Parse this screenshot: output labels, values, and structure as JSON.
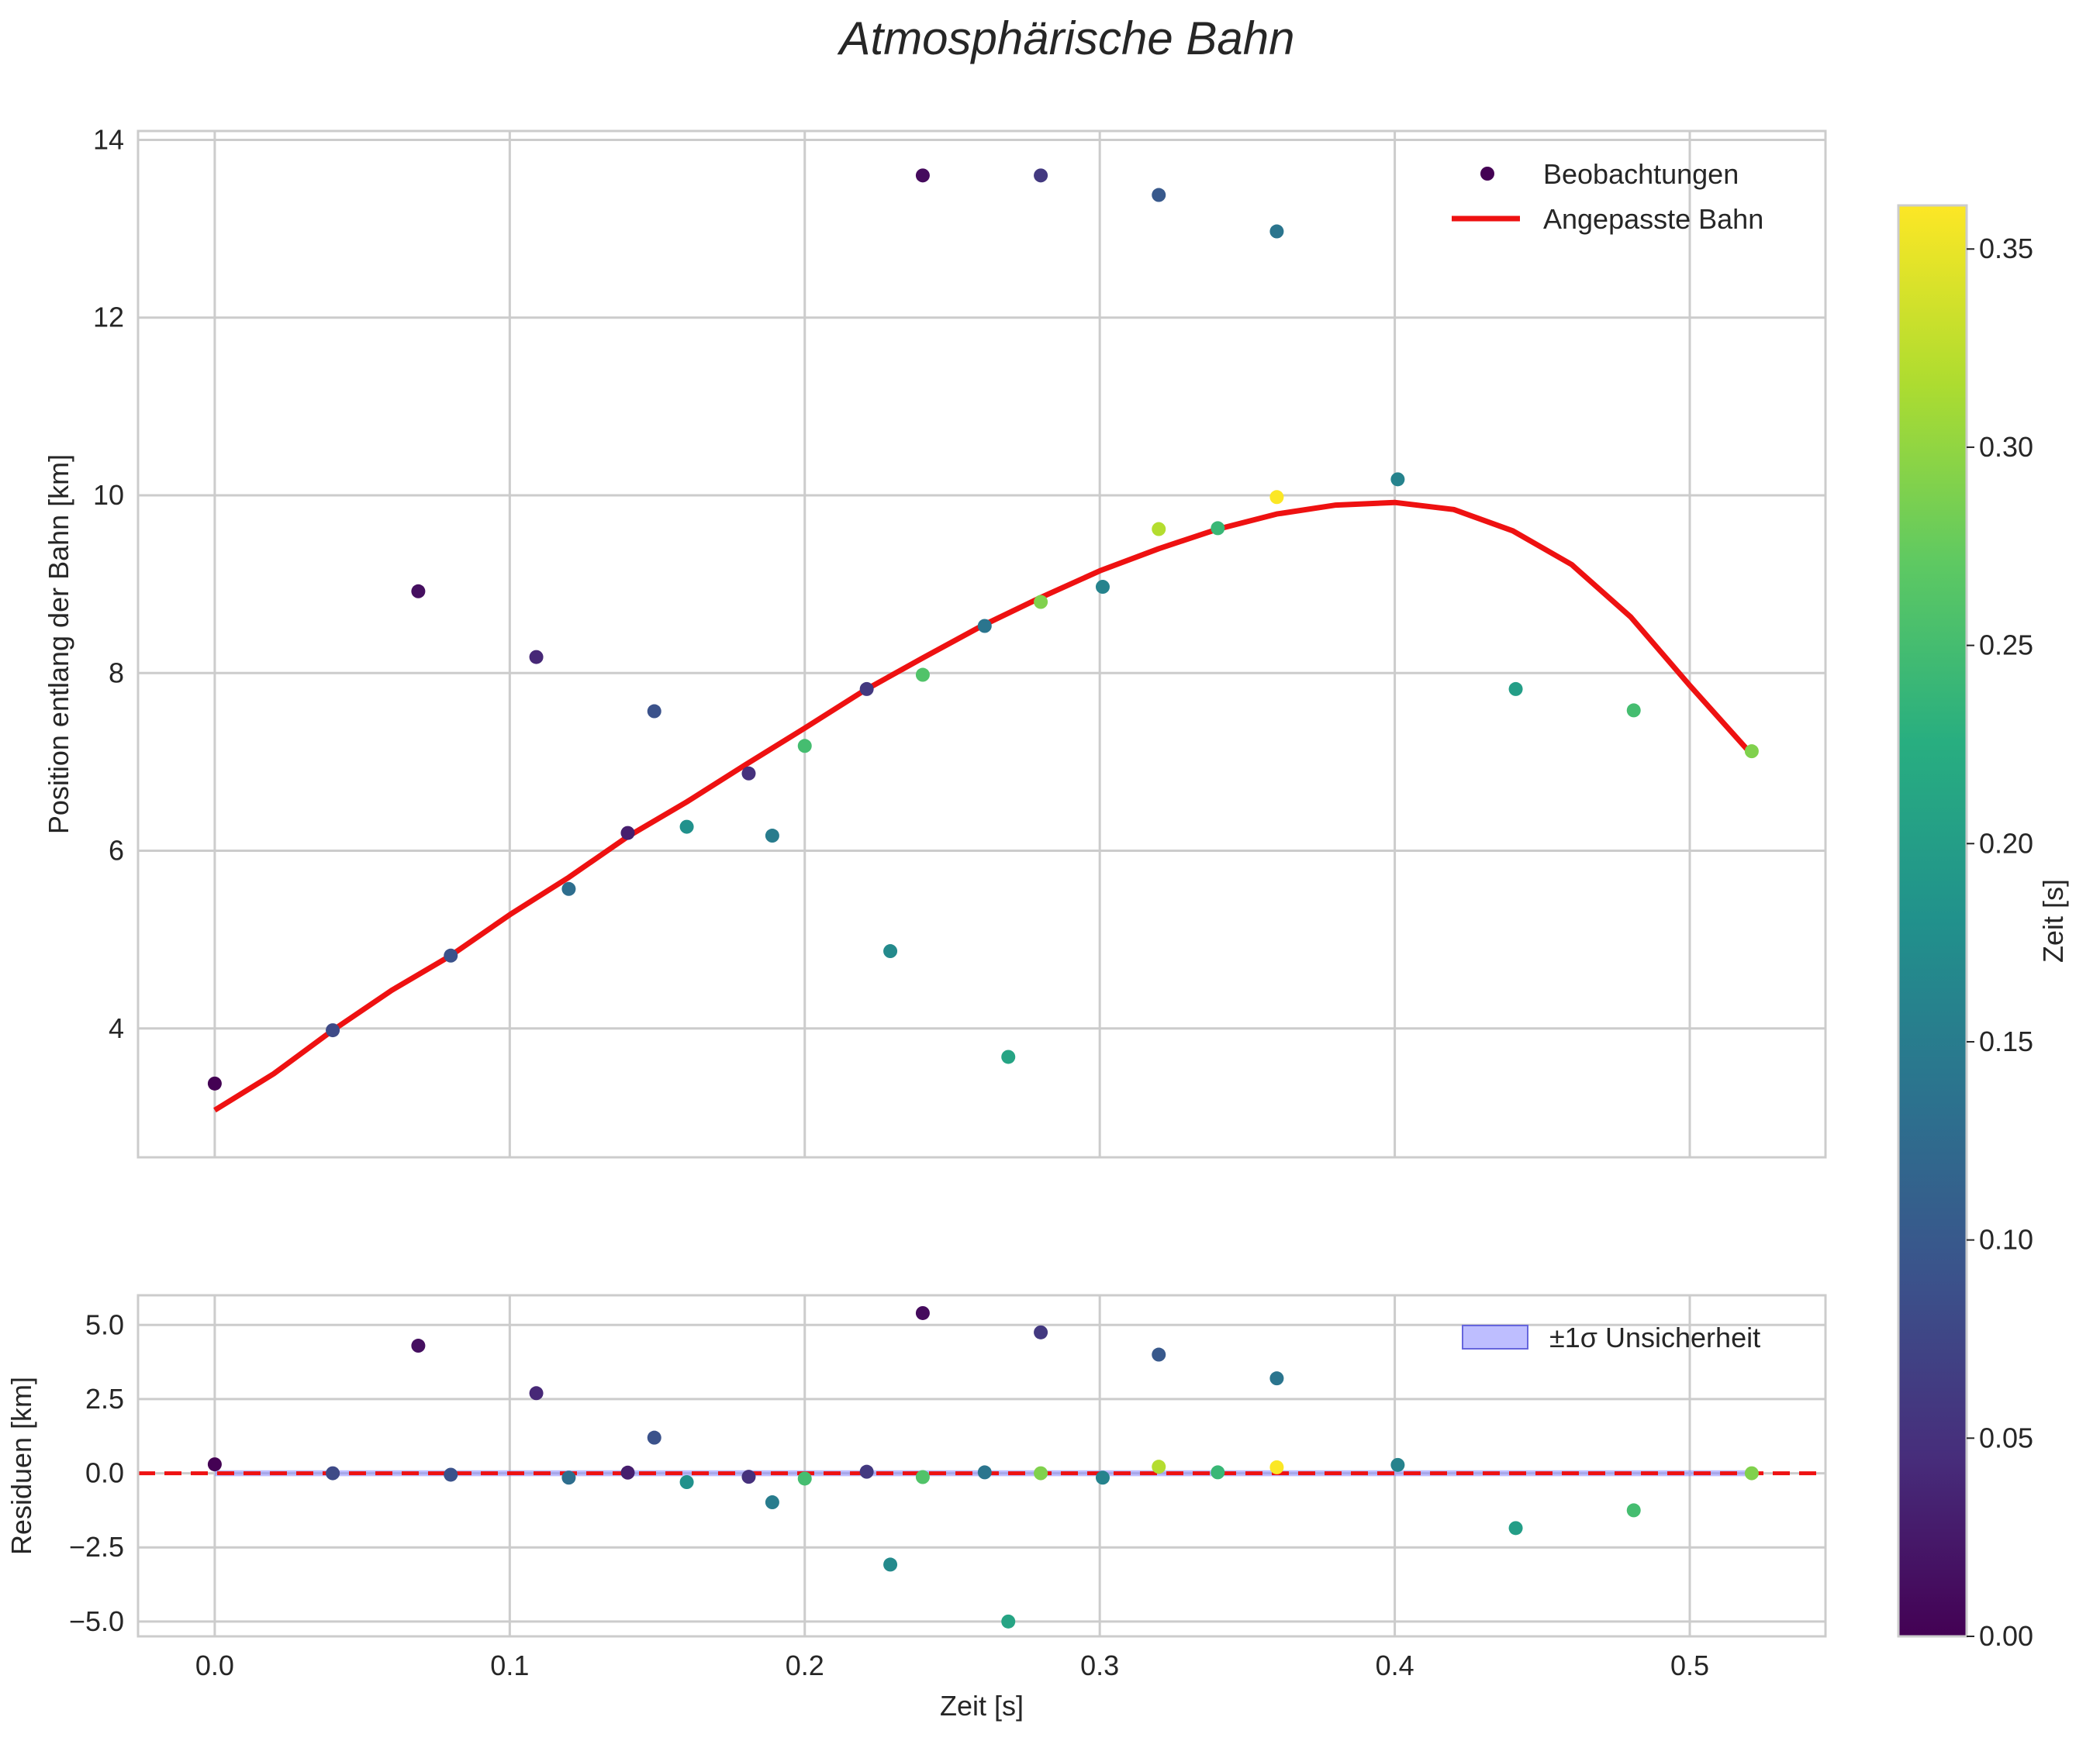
{
  "figure": {
    "title": "Atmosphärische Bahn"
  },
  "chart_data": [
    {
      "type": "scatter",
      "panel": "main",
      "xlabel": "",
      "ylabel": "Position entlang der Bahn [km]",
      "xlim": [
        -0.026,
        0.546
      ],
      "ylim": [
        2.55,
        14.1
      ],
      "xticks": [
        0.0,
        0.1,
        0.2,
        0.3,
        0.4,
        0.5
      ],
      "yticks": [
        4,
        6,
        8,
        10,
        12,
        14
      ],
      "ytick_labels": [
        "4",
        "6",
        "8",
        "10",
        "12",
        "14"
      ],
      "grid": true,
      "legend": {
        "placement": "top-right",
        "entries": [
          "Beobachtungen",
          "Angepasste Bahn"
        ]
      },
      "series": [
        {
          "name": "Beobachtungen",
          "kind": "scatter",
          "color_encoding": "Zeit [s] (viridis)",
          "points": [
            {
              "x": 0.0,
              "y": 3.38,
              "c": 0.0
            },
            {
              "x": 0.04,
              "y": 3.98,
              "c": 0.08
            },
            {
              "x": 0.069,
              "y": 8.92,
              "c": 0.014
            },
            {
              "x": 0.08,
              "y": 4.82,
              "c": 0.09
            },
            {
              "x": 0.109,
              "y": 8.18,
              "c": 0.04
            },
            {
              "x": 0.12,
              "y": 5.57,
              "c": 0.13
            },
            {
              "x": 0.14,
              "y": 6.2,
              "c": 0.03
            },
            {
              "x": 0.149,
              "y": 7.57,
              "c": 0.09
            },
            {
              "x": 0.16,
              "y": 6.27,
              "c": 0.18
            },
            {
              "x": 0.181,
              "y": 6.87,
              "c": 0.05
            },
            {
              "x": 0.189,
              "y": 6.17,
              "c": 0.15
            },
            {
              "x": 0.2,
              "y": 7.18,
              "c": 0.25
            },
            {
              "x": 0.221,
              "y": 7.82,
              "c": 0.06
            },
            {
              "x": 0.229,
              "y": 4.87,
              "c": 0.17
            },
            {
              "x": 0.24,
              "y": 13.6,
              "c": 0.01
            },
            {
              "x": 0.24,
              "y": 7.98,
              "c": 0.26
            },
            {
              "x": 0.261,
              "y": 8.53,
              "c": 0.14
            },
            {
              "x": 0.269,
              "y": 3.68,
              "c": 0.21
            },
            {
              "x": 0.28,
              "y": 13.6,
              "c": 0.06
            },
            {
              "x": 0.28,
              "y": 8.8,
              "c": 0.29
            },
            {
              "x": 0.301,
              "y": 8.97,
              "c": 0.16
            },
            {
              "x": 0.32,
              "y": 13.38,
              "c": 0.1
            },
            {
              "x": 0.32,
              "y": 9.62,
              "c": 0.32
            },
            {
              "x": 0.34,
              "y": 9.63,
              "c": 0.24
            },
            {
              "x": 0.36,
              "y": 12.97,
              "c": 0.14
            },
            {
              "x": 0.36,
              "y": 9.98,
              "c": 0.36
            },
            {
              "x": 0.401,
              "y": 10.18,
              "c": 0.16
            },
            {
              "x": 0.441,
              "y": 7.82,
              "c": 0.2
            },
            {
              "x": 0.481,
              "y": 7.58,
              "c": 0.25
            },
            {
              "x": 0.521,
              "y": 7.12,
              "c": 0.29
            }
          ]
        },
        {
          "name": "Angepasste Bahn",
          "kind": "line",
          "color": "#ee1111",
          "x": [
            0.0,
            0.02,
            0.04,
            0.06,
            0.08,
            0.1,
            0.12,
            0.14,
            0.16,
            0.18,
            0.2,
            0.22,
            0.24,
            0.26,
            0.28,
            0.3,
            0.32,
            0.34,
            0.36,
            0.38,
            0.4,
            0.42,
            0.44,
            0.46,
            0.48,
            0.5,
            0.52
          ],
          "y": [
            3.08,
            3.49,
            3.98,
            4.43,
            4.82,
            5.28,
            5.7,
            6.16,
            6.55,
            6.97,
            7.38,
            7.8,
            8.17,
            8.53,
            8.85,
            9.15,
            9.4,
            9.62,
            9.79,
            9.89,
            9.92,
            9.84,
            9.6,
            9.22,
            8.63,
            7.86,
            7.12
          ]
        }
      ]
    },
    {
      "type": "scatter",
      "panel": "residuals",
      "xlabel": "Zeit [s]",
      "ylabel": "Residuen [km]",
      "xlim": [
        -0.026,
        0.546
      ],
      "ylim": [
        -5.5,
        6.0
      ],
      "xticks": [
        0.0,
        0.1,
        0.2,
        0.3,
        0.4,
        0.5
      ],
      "xtick_labels": [
        "0.0",
        "0.1",
        "0.2",
        "0.3",
        "0.4",
        "0.5"
      ],
      "yticks": [
        5.0,
        2.5,
        0.0,
        -2.5,
        -5.0
      ],
      "ytick_labels": [
        "5.0",
        "2.5",
        "0.0",
        "−2.5",
        "−5.0"
      ],
      "grid": true,
      "zero_line": {
        "y": 0,
        "color": "#ee1111",
        "style": "dashed"
      },
      "band": {
        "label": "±1σ Unsicherheit",
        "color": "#8888ff",
        "y_low": -0.1,
        "y_high": 0.1
      },
      "legend": {
        "placement": "top-right",
        "entries": [
          "±1σ Unsicherheit"
        ]
      },
      "series": [
        {
          "name": "Residuen",
          "kind": "scatter",
          "points": [
            {
              "x": 0.0,
              "y": 0.3,
              "c": 0.0
            },
            {
              "x": 0.04,
              "y": 0.0,
              "c": 0.08
            },
            {
              "x": 0.069,
              "y": 4.3,
              "c": 0.014
            },
            {
              "x": 0.08,
              "y": -0.05,
              "c": 0.09
            },
            {
              "x": 0.109,
              "y": 2.7,
              "c": 0.04
            },
            {
              "x": 0.12,
              "y": -0.15,
              "c": 0.13
            },
            {
              "x": 0.14,
              "y": 0.02,
              "c": 0.03
            },
            {
              "x": 0.149,
              "y": 1.2,
              "c": 0.09
            },
            {
              "x": 0.16,
              "y": -0.3,
              "c": 0.18
            },
            {
              "x": 0.181,
              "y": -0.12,
              "c": 0.05
            },
            {
              "x": 0.189,
              "y": -0.98,
              "c": 0.15
            },
            {
              "x": 0.2,
              "y": -0.18,
              "c": 0.25
            },
            {
              "x": 0.221,
              "y": 0.05,
              "c": 0.06
            },
            {
              "x": 0.229,
              "y": -3.08,
              "c": 0.17
            },
            {
              "x": 0.24,
              "y": 5.4,
              "c": 0.01
            },
            {
              "x": 0.24,
              "y": -0.13,
              "c": 0.26
            },
            {
              "x": 0.261,
              "y": 0.03,
              "c": 0.14
            },
            {
              "x": 0.269,
              "y": -5.0,
              "c": 0.21
            },
            {
              "x": 0.28,
              "y": 4.75,
              "c": 0.06
            },
            {
              "x": 0.28,
              "y": 0.0,
              "c": 0.29
            },
            {
              "x": 0.301,
              "y": -0.15,
              "c": 0.16
            },
            {
              "x": 0.32,
              "y": 4.0,
              "c": 0.1
            },
            {
              "x": 0.32,
              "y": 0.22,
              "c": 0.32
            },
            {
              "x": 0.34,
              "y": 0.03,
              "c": 0.24
            },
            {
              "x": 0.36,
              "y": 3.2,
              "c": 0.14
            },
            {
              "x": 0.36,
              "y": 0.2,
              "c": 0.36
            },
            {
              "x": 0.401,
              "y": 0.28,
              "c": 0.16
            },
            {
              "x": 0.441,
              "y": -1.85,
              "c": 0.2
            },
            {
              "x": 0.481,
              "y": -1.25,
              "c": 0.25
            },
            {
              "x": 0.521,
              "y": 0.0,
              "c": 0.29
            }
          ]
        }
      ]
    },
    {
      "type": "colorbar",
      "label": "Zeit [s]",
      "colormap": "viridis",
      "range": [
        0.0,
        0.361
      ],
      "ticks": [
        0.0,
        0.05,
        0.1,
        0.15,
        0.2,
        0.25,
        0.3,
        0.35
      ],
      "tick_labels": [
        "0.00",
        "0.05",
        "0.10",
        "0.15",
        "0.20",
        "0.25",
        "0.30",
        "0.35"
      ]
    }
  ]
}
